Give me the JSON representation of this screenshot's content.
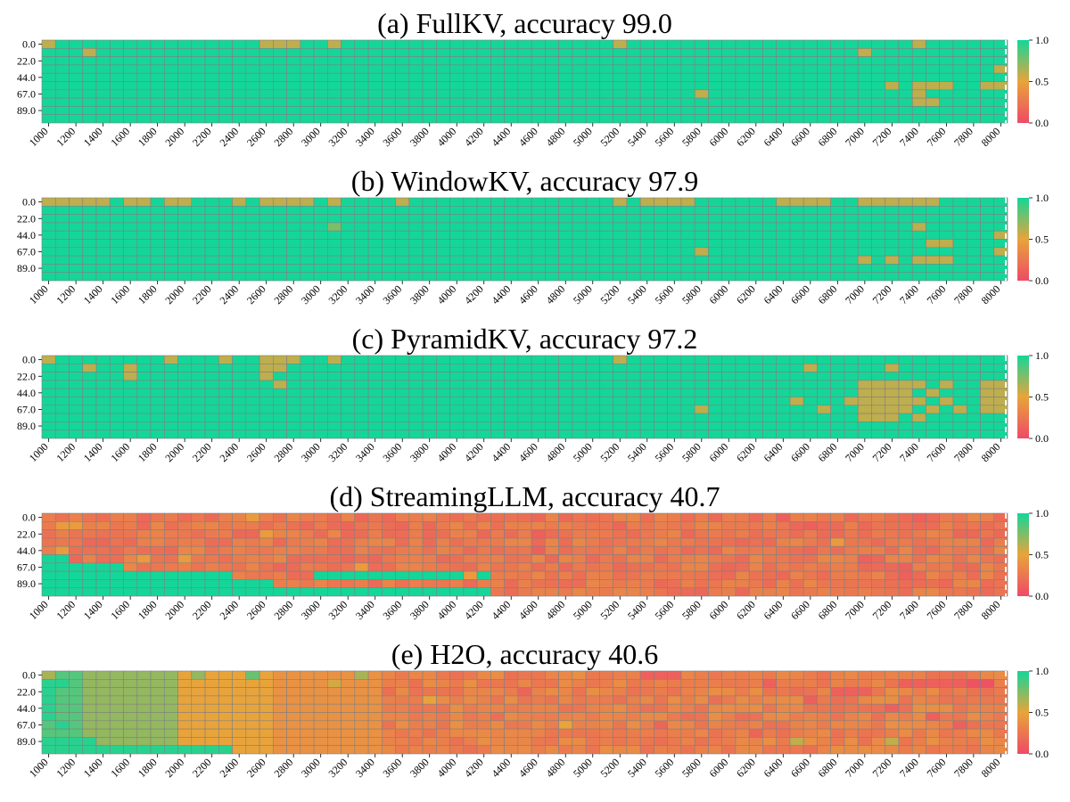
{
  "colors": {
    "low": "#ee4a66",
    "mid": "#e8a43a",
    "high": "#14d698",
    "grid": "#808080"
  },
  "colorbar_ticks": [
    "1.0",
    "0.5",
    "0.0"
  ],
  "shared_axes": {
    "y_ticks": [
      "0.0",
      "22.0",
      "44.0",
      "67.0",
      "89.0"
    ],
    "x_ticks": [
      "1000",
      "1200",
      "1400",
      "1600",
      "1800",
      "2000",
      "2200",
      "2400",
      "2600",
      "2800",
      "3000",
      "3200",
      "3400",
      "3600",
      "3800",
      "4000",
      "4200",
      "4400",
      "4600",
      "4800",
      "5000",
      "5200",
      "5400",
      "5600",
      "5800",
      "6000",
      "6200",
      "6400",
      "6600",
      "6800",
      "7000",
      "7200",
      "7400",
      "7600",
      "7800",
      "8000"
    ],
    "y_values": [
      0.0,
      11.0,
      22.0,
      33.0,
      44.0,
      55.0,
      67.0,
      78.0,
      89.0,
      100.0
    ],
    "x_start": 1000,
    "x_step": 100,
    "x_end": 8000
  },
  "chart_data": [
    {
      "type": "heatmap",
      "title": "(a) FullKV, accuracy 99.0",
      "accuracy": 99.0,
      "value_range": [
        0.0,
        1.0
      ],
      "default_value": 1.0,
      "cells": [
        [
          0,
          1000,
          0.6
        ],
        [
          0,
          2600,
          0.6
        ],
        [
          0,
          2700,
          0.6
        ],
        [
          0,
          2800,
          0.6
        ],
        [
          0,
          3100,
          0.6
        ],
        [
          0,
          5200,
          0.6
        ],
        [
          0,
          7400,
          0.6
        ],
        [
          1,
          1300,
          0.6
        ],
        [
          1,
          7000,
          0.6
        ],
        [
          3,
          8000,
          0.6
        ],
        [
          5,
          7200,
          0.6
        ],
        [
          5,
          7400,
          0.6
        ],
        [
          5,
          7500,
          0.6
        ],
        [
          5,
          7600,
          0.6
        ],
        [
          5,
          7900,
          0.6
        ],
        [
          5,
          8000,
          0.6
        ],
        [
          6,
          5800,
          0.6
        ],
        [
          6,
          7400,
          0.6
        ],
        [
          7,
          7400,
          0.6
        ],
        [
          7,
          7500,
          0.6
        ]
      ]
    },
    {
      "type": "heatmap",
      "title": "(b) WindowKV, accuracy 97.9",
      "accuracy": 97.9,
      "value_range": [
        0.0,
        1.0
      ],
      "default_value": 1.0,
      "cells": [
        [
          0,
          1000,
          0.6
        ],
        [
          0,
          1100,
          0.6
        ],
        [
          0,
          1200,
          0.6
        ],
        [
          0,
          1300,
          0.6
        ],
        [
          0,
          1400,
          0.6
        ],
        [
          0,
          1600,
          0.6
        ],
        [
          0,
          1700,
          0.6
        ],
        [
          0,
          1900,
          0.6
        ],
        [
          0,
          2000,
          0.6
        ],
        [
          0,
          2400,
          0.6
        ],
        [
          0,
          2600,
          0.6
        ],
        [
          0,
          2700,
          0.6
        ],
        [
          0,
          2800,
          0.6
        ],
        [
          0,
          2900,
          0.6
        ],
        [
          0,
          3100,
          0.6
        ],
        [
          0,
          3600,
          0.6
        ],
        [
          0,
          5200,
          0.6
        ],
        [
          0,
          5400,
          0.6
        ],
        [
          0,
          5500,
          0.6
        ],
        [
          0,
          5600,
          0.6
        ],
        [
          0,
          5700,
          0.6
        ],
        [
          0,
          6400,
          0.6
        ],
        [
          0,
          6500,
          0.6
        ],
        [
          0,
          6600,
          0.6
        ],
        [
          0,
          6700,
          0.6
        ],
        [
          0,
          7000,
          0.6
        ],
        [
          0,
          7100,
          0.6
        ],
        [
          0,
          7200,
          0.6
        ],
        [
          0,
          7300,
          0.6
        ],
        [
          0,
          7400,
          0.6
        ],
        [
          0,
          7500,
          0.6
        ],
        [
          3,
          3100,
          0.75
        ],
        [
          3,
          7400,
          0.6
        ],
        [
          4,
          8000,
          0.6
        ],
        [
          5,
          7500,
          0.6
        ],
        [
          5,
          7600,
          0.6
        ],
        [
          6,
          5800,
          0.6
        ],
        [
          6,
          8000,
          0.6
        ],
        [
          7,
          7000,
          0.6
        ],
        [
          7,
          7200,
          0.6
        ],
        [
          7,
          7400,
          0.6
        ],
        [
          7,
          7500,
          0.6
        ],
        [
          7,
          7600,
          0.6
        ]
      ]
    },
    {
      "type": "heatmap",
      "title": "(c) PyramidKV, accuracy 97.2",
      "accuracy": 97.2,
      "value_range": [
        0.0,
        1.0
      ],
      "default_value": 1.0,
      "cells": [
        [
          0,
          1000,
          0.6
        ],
        [
          0,
          1900,
          0.6
        ],
        [
          0,
          2300,
          0.6
        ],
        [
          0,
          2600,
          0.6
        ],
        [
          0,
          2700,
          0.6
        ],
        [
          0,
          2800,
          0.6
        ],
        [
          0,
          3100,
          0.6
        ],
        [
          0,
          5200,
          0.6
        ],
        [
          1,
          1300,
          0.6
        ],
        [
          1,
          1600,
          0.6
        ],
        [
          1,
          2600,
          0.6
        ],
        [
          1,
          2700,
          0.6
        ],
        [
          1,
          6600,
          0.6
        ],
        [
          1,
          7200,
          0.6
        ],
        [
          2,
          1600,
          0.6
        ],
        [
          2,
          2600,
          0.6
        ],
        [
          3,
          2700,
          0.6
        ],
        [
          3,
          7000,
          0.6
        ],
        [
          3,
          7100,
          0.6
        ],
        [
          3,
          7200,
          0.6
        ],
        [
          3,
          7300,
          0.6
        ],
        [
          3,
          7400,
          0.6
        ],
        [
          3,
          7600,
          0.6
        ],
        [
          3,
          7900,
          0.6
        ],
        [
          3,
          8000,
          0.6
        ],
        [
          4,
          7000,
          0.6
        ],
        [
          4,
          7100,
          0.6
        ],
        [
          4,
          7200,
          0.6
        ],
        [
          4,
          7300,
          0.6
        ],
        [
          4,
          7500,
          0.6
        ],
        [
          4,
          7900,
          0.6
        ],
        [
          4,
          8000,
          0.6
        ],
        [
          5,
          6500,
          0.6
        ],
        [
          5,
          6900,
          0.6
        ],
        [
          5,
          7000,
          0.6
        ],
        [
          5,
          7100,
          0.6
        ],
        [
          5,
          7200,
          0.6
        ],
        [
          5,
          7300,
          0.6
        ],
        [
          5,
          7400,
          0.6
        ],
        [
          5,
          7600,
          0.6
        ],
        [
          5,
          7900,
          0.6
        ],
        [
          5,
          8000,
          0.6
        ],
        [
          6,
          5800,
          0.6
        ],
        [
          6,
          6700,
          0.6
        ],
        [
          6,
          7000,
          0.6
        ],
        [
          6,
          7100,
          0.6
        ],
        [
          6,
          7200,
          0.6
        ],
        [
          6,
          7300,
          0.6
        ],
        [
          6,
          7500,
          0.6
        ],
        [
          6,
          7700,
          0.6
        ],
        [
          6,
          7900,
          0.6
        ],
        [
          6,
          8000,
          0.6
        ],
        [
          7,
          7000,
          0.6
        ],
        [
          7,
          7100,
          0.6
        ],
        [
          7,
          7200,
          0.6
        ],
        [
          7,
          7400,
          0.6
        ]
      ]
    },
    {
      "type": "heatmap",
      "title": "(d) StreamingLLM, accuracy 40.7",
      "accuracy": 40.7,
      "value_range": [
        0.0,
        1.0
      ],
      "default_value": 0.25,
      "row_high_until": [
        1000,
        1000,
        1000,
        1000,
        1000,
        1200,
        1600,
        2400,
        2700,
        4300
      ],
      "cells": [
        [
          7,
          3000,
          1.0
        ],
        [
          7,
          3100,
          1.0
        ],
        [
          7,
          3200,
          1.0
        ],
        [
          7,
          3300,
          1.0
        ],
        [
          7,
          3400,
          1.0
        ],
        [
          7,
          3500,
          1.0
        ],
        [
          7,
          3600,
          1.0
        ],
        [
          7,
          3700,
          1.0
        ],
        [
          7,
          3800,
          1.0
        ],
        [
          7,
          3900,
          1.0
        ],
        [
          7,
          4000,
          1.0
        ],
        [
          7,
          4100,
          0.45
        ],
        [
          7,
          4200,
          1.0
        ],
        [
          0,
          2500,
          0.45
        ],
        [
          1,
          1100,
          0.45
        ],
        [
          1,
          1200,
          0.45
        ],
        [
          2,
          2600,
          0.45
        ],
        [
          2,
          4600,
          0.45
        ],
        [
          3,
          6800,
          0.45
        ],
        [
          5,
          1700,
          0.45
        ],
        [
          5,
          2000,
          0.45
        ],
        [
          6,
          3300,
          0.45
        ],
        [
          0,
          6400,
          0.12
        ],
        [
          0,
          7400,
          0.12
        ],
        [
          1,
          6600,
          0.12
        ],
        [
          2,
          4600,
          0.12
        ],
        [
          4,
          4600,
          0.12
        ],
        [
          5,
          7000,
          0.12
        ],
        [
          6,
          7300,
          0.12
        ],
        [
          7,
          7300,
          0.12
        ],
        [
          4,
          1100,
          0.45
        ],
        [
          8,
          1000,
          1.0
        ],
        [
          9,
          1000,
          1.0
        ]
      ]
    },
    {
      "type": "heatmap",
      "title": "(e) H2O, accuracy 40.6",
      "accuracy": 40.6,
      "value_range": [
        0.0,
        1.0
      ],
      "default_value": 0.3,
      "zones": [
        {
          "x_from": 1000,
          "x_to": 1300,
          "value": 0.85
        },
        {
          "x_from": 1300,
          "x_to": 2000,
          "value": 0.7
        },
        {
          "x_from": 2000,
          "x_to": 2700,
          "value": 0.5
        },
        {
          "x_from": 2700,
          "x_to": 3500,
          "value": 0.4
        }
      ],
      "cells": [
        [
          0,
          1000,
          0.65
        ],
        [
          1,
          1000,
          0.95
        ],
        [
          1,
          1100,
          0.95
        ],
        [
          2,
          1000,
          0.95
        ],
        [
          3,
          1000,
          0.95
        ],
        [
          4,
          1000,
          0.95
        ],
        [
          5,
          1000,
          0.95
        ],
        [
          6,
          1100,
          0.95
        ],
        [
          8,
          1000,
          0.95
        ],
        [
          8,
          1100,
          0.95
        ],
        [
          8,
          1200,
          0.95
        ],
        [
          8,
          1300,
          0.95
        ],
        [
          9,
          1000,
          0.95
        ],
        [
          9,
          1100,
          0.95
        ],
        [
          9,
          1200,
          0.95
        ],
        [
          9,
          1300,
          0.95
        ],
        [
          9,
          1400,
          0.95
        ],
        [
          9,
          1500,
          0.95
        ],
        [
          9,
          1600,
          0.95
        ],
        [
          9,
          1700,
          0.95
        ],
        [
          9,
          1800,
          0.95
        ],
        [
          9,
          1900,
          0.95
        ],
        [
          9,
          2000,
          0.95
        ],
        [
          9,
          2100,
          0.95
        ],
        [
          9,
          2200,
          0.95
        ],
        [
          9,
          2300,
          0.95
        ],
        [
          0,
          2100,
          0.7
        ],
        [
          0,
          2500,
          0.8
        ],
        [
          0,
          3300,
          0.65
        ],
        [
          1,
          3100,
          0.55
        ],
        [
          3,
          3800,
          0.5
        ],
        [
          6,
          4800,
          0.5
        ],
        [
          8,
          6500,
          0.6
        ],
        [
          8,
          7200,
          0.6
        ],
        [
          0,
          5400,
          0.12
        ],
        [
          0,
          5500,
          0.12
        ],
        [
          0,
          5600,
          0.12
        ],
        [
          1,
          7300,
          0.12
        ],
        [
          1,
          7400,
          0.12
        ],
        [
          1,
          7500,
          0.12
        ],
        [
          1,
          7600,
          0.12
        ],
        [
          1,
          7700,
          0.12
        ],
        [
          1,
          7800,
          0.05
        ],
        [
          1,
          7900,
          0.05
        ],
        [
          2,
          6800,
          0.12
        ],
        [
          2,
          6900,
          0.12
        ],
        [
          2,
          7000,
          0.12
        ],
        [
          3,
          6600,
          0.12
        ],
        [
          4,
          7200,
          0.12
        ],
        [
          5,
          7500,
          0.12
        ],
        [
          6,
          7700,
          0.12
        ],
        [
          1,
          6300,
          0.12
        ],
        [
          2,
          4500,
          0.15
        ],
        [
          6,
          5500,
          0.15
        ],
        [
          7,
          6200,
          0.15
        ]
      ]
    }
  ]
}
